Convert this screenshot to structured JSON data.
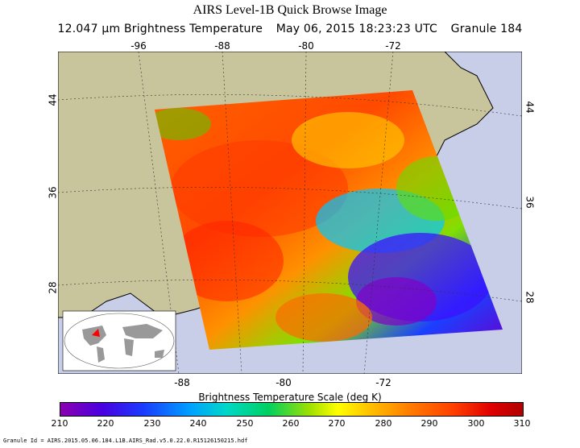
{
  "title": "AIRS Level-1B Quick Browse Image",
  "subtitle": {
    "channel": "12.047 μm Brightness Temperature",
    "date": "May 06, 2015 18:23:23 UTC",
    "granule": "Granule 184"
  },
  "map": {
    "top_ticks": [
      "-96",
      "-88",
      "-80",
      "-72"
    ],
    "bottom_ticks": [
      "-88",
      "-80",
      "-72"
    ],
    "left_ticks": [
      "44",
      "36",
      "28"
    ],
    "right_ticks": [
      "44",
      "36",
      "28"
    ],
    "ocean_color": "#c8cde8",
    "land_color": "#c8c49c",
    "swath": "brightness temperature swath"
  },
  "scale": {
    "label": "Brightness Temperature Scale (deg K)",
    "ticks": [
      "210",
      "220",
      "230",
      "240",
      "250",
      "260",
      "270",
      "280",
      "290",
      "300",
      "310"
    ]
  },
  "granule_id": "Granule Id = AIRS.2015.05.06.184.L1B.AIRS_Rad.v5.0.22.0.R15126150215.hdf"
}
